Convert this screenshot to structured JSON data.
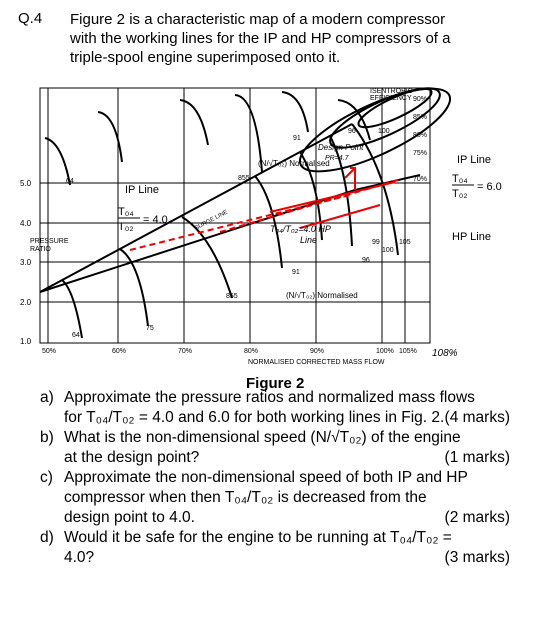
{
  "question": {
    "number": "Q.4",
    "intro": [
      "Figure 2 is a characteristic map of a modern compressor",
      "with the working lines for the IP and HP compressors of a",
      "triple-spool engine superimposed onto it."
    ]
  },
  "figure": {
    "efficiency_title": [
      "ISENTROPIC",
      "EFFICIENCY"
    ],
    "efficiency_labels": [
      "90%",
      "85%",
      "80%",
      "75%",
      "70%"
    ],
    "y_ticks": [
      "5.0",
      "4.0",
      "3.0",
      "2.0",
      "1.0"
    ],
    "y_title": [
      "PRESSURE",
      "RATIO"
    ],
    "x_ticks": [
      "50%",
      "60%",
      "70%",
      "80%",
      "90%",
      "100%",
      "105%"
    ],
    "x_title": "NORMALISED CORRECTED MASS FLOW",
    "x_note": "108%",
    "ip_line_left": {
      "label": "IP Line",
      "num": "T₀₄",
      "den": "T₀₂",
      "rhs": "= 4.0"
    },
    "ip_line_right": {
      "label": "IP Line",
      "num": "T₀₄",
      "den": "T₀₂",
      "rhs": "= 6.0"
    },
    "hp_line": "HP Line",
    "surge_line": "SURGE LINE",
    "design_point": [
      "Design Point",
      "PR=4.7"
    ],
    "speed_upper": "(N/√T₀₂) Normalised",
    "speed_lower": "(N/√T₀₂) Normalised",
    "hp_note": [
      "T₀₄/T₀₂=4.0 HP",
      "Line"
    ],
    "upper_speeds": [
      "64",
      "855",
      "91",
      "96",
      "100"
    ],
    "lower_speeds": [
      "64",
      "75",
      "855",
      "91",
      "96",
      "99",
      "100",
      "105"
    ],
    "caption": "Figure 2"
  },
  "questions": [
    {
      "label": "a)",
      "lines": [
        "Approximate the pressure ratios and normalized mass flows",
        "for T₀₄/T₀₂ = 4.0 and 6.0 for both working lines in Fig. 2."
      ],
      "marks": "(4 marks)"
    },
    {
      "label": "b)",
      "lines": [
        "What is the non-dimensional speed (N/√T₀₂) of the engine",
        "at the design point?"
      ],
      "marks": "(1 marks)"
    },
    {
      "label": "c)",
      "lines": [
        "Approximate the non-dimensional speed of both IP and HP",
        "compressor when then T₀₄/T₀₂ is decreased from the",
        "design point to 4.0."
      ],
      "marks": "(2 marks)"
    },
    {
      "label": "d)",
      "lines": [
        "Would it be safe for the engine to be running at T₀₄/T₀₂ =",
        "4.0?"
      ],
      "marks": "(3 marks)"
    }
  ]
}
